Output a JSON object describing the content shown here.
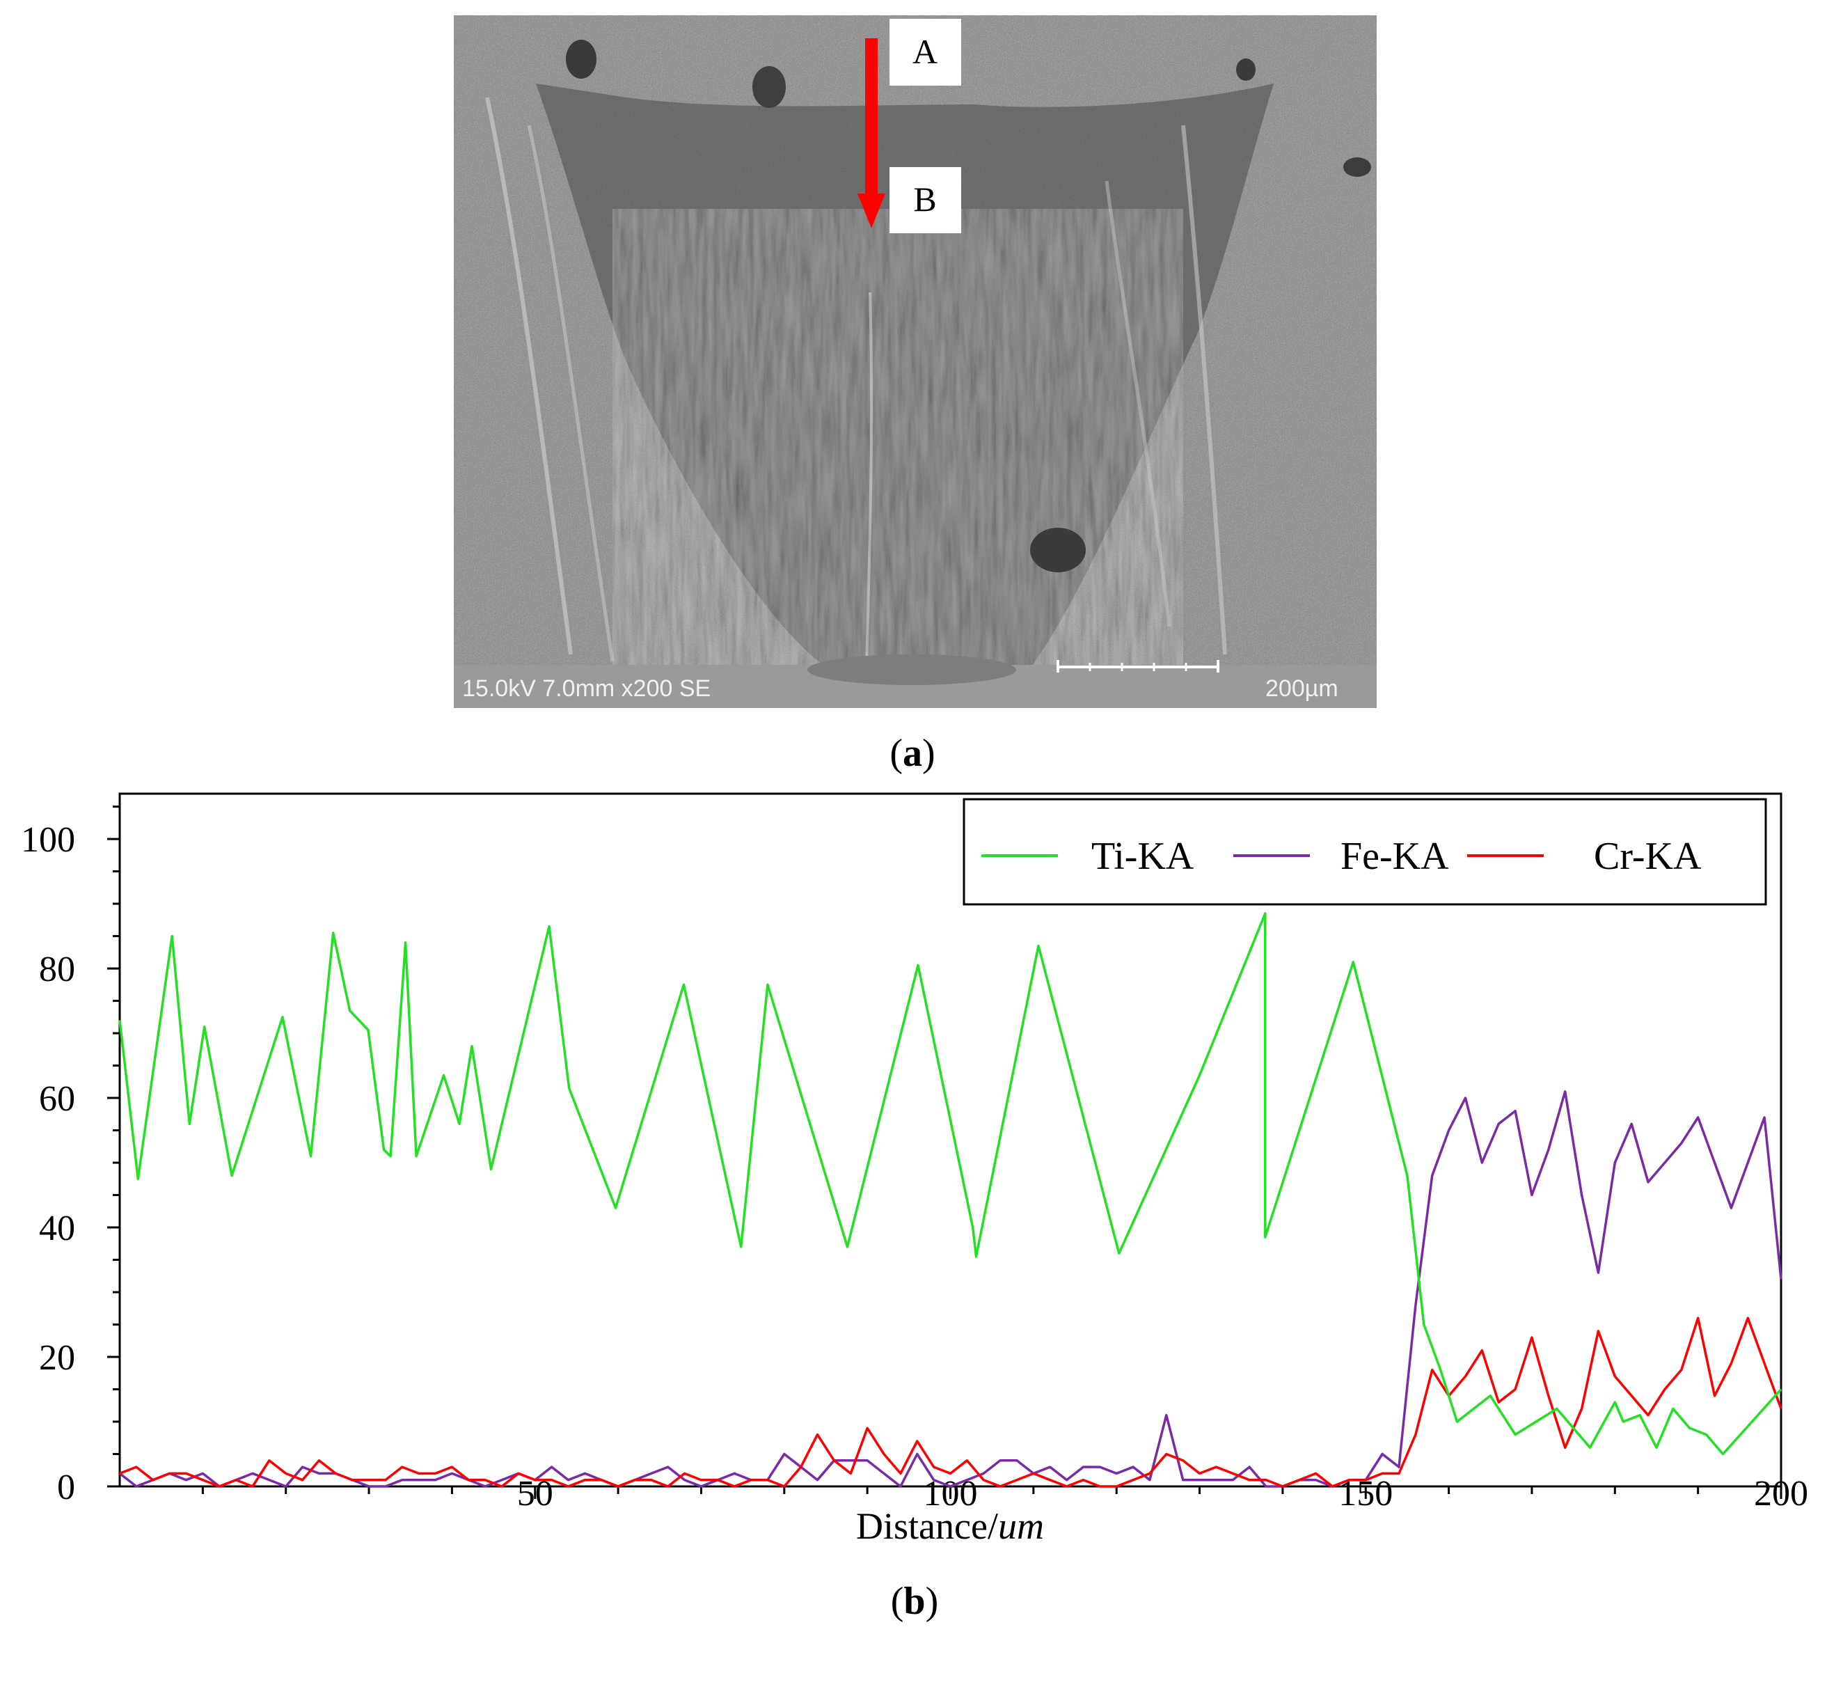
{
  "panel_a": {
    "caption_open": "(",
    "caption_letter": "a",
    "caption_close": ")",
    "marker_a": "A",
    "marker_b": "B",
    "sem_info": "15.0kV 7.0mm x200 SE",
    "scale_bar": "200µm"
  },
  "panel_b": {
    "caption_open": "(",
    "caption_letter": "b",
    "caption_close": ")",
    "xlabel_main": "Distance/",
    "xlabel_unit": "um"
  },
  "colors": {
    "ti": "#22e022",
    "fe": "#7a2aa6",
    "cr": "#ff0000",
    "arrow": "#ff0000"
  },
  "chart_data": {
    "type": "line",
    "title": "",
    "xlabel": "Distance/um",
    "ylabel": "",
    "xlim": [
      0,
      200
    ],
    "ylim": [
      0,
      107
    ],
    "x_ticks": [
      50,
      100,
      150,
      200
    ],
    "y_ticks": [
      0,
      20,
      40,
      60,
      80,
      100
    ],
    "legend": "top-right",
    "series": [
      {
        "name": "Ti-KA",
        "color": "#22e022",
        "x": [
          0,
          2.2,
          6.3,
          8.4,
          10.2,
          13.5,
          19.6,
          23,
          25.7,
          27.7,
          29.9,
          31.8,
          32.6,
          34.4,
          35.7,
          39,
          40.9,
          42.4,
          44.7,
          51.7,
          54.1,
          59.7,
          67.9,
          74.8,
          78,
          87.6,
          96.1,
          102.7,
          103.1,
          110.6,
          120.3,
          130,
          137.9,
          137.9,
          148.5,
          155,
          157,
          159,
          161,
          165,
          168,
          173,
          177,
          180,
          181,
          183,
          185,
          187,
          189,
          191,
          193,
          200
        ],
        "y": [
          72,
          47.5,
          85,
          56,
          71,
          48,
          72.5,
          51,
          85.5,
          73.5,
          70.5,
          52,
          51,
          84,
          51,
          63.5,
          56,
          68,
          49,
          86.5,
          61.5,
          43,
          77.5,
          37,
          77.5,
          37,
          80.5,
          40,
          35.5,
          83.5,
          36,
          63.5,
          88.5,
          38.5,
          81,
          48,
          25,
          18,
          10,
          14,
          8,
          12,
          6,
          13,
          10,
          11,
          6,
          12,
          9,
          8,
          5,
          15
        ]
      },
      {
        "name": "Fe-KA",
        "color": "#7a2aa6",
        "x": [
          0,
          2,
          4,
          6,
          8,
          10,
          12,
          14,
          16,
          18,
          20,
          22,
          24,
          26,
          28,
          30,
          32,
          34,
          36,
          38,
          40,
          42,
          44,
          46,
          48,
          50,
          52,
          54,
          56,
          58,
          60,
          62,
          64,
          66,
          68,
          70,
          72,
          74,
          76,
          78,
          80,
          82,
          84,
          86,
          88,
          90,
          92,
          94,
          96,
          98,
          100,
          102,
          104,
          106,
          108,
          110,
          112,
          114,
          116,
          118,
          120,
          122,
          124,
          126,
          128,
          130,
          132,
          134,
          136,
          138,
          140,
          142,
          144,
          146,
          148,
          150,
          152,
          154,
          156,
          158,
          160,
          162,
          164,
          166,
          168,
          170,
          172,
          174,
          176,
          178,
          180,
          182,
          184,
          186,
          188,
          190,
          192,
          194,
          196,
          198,
          200
        ],
        "y": [
          2,
          0,
          1,
          2,
          1,
          2,
          0,
          1,
          2,
          1,
          0,
          3,
          2,
          2,
          1,
          0,
          0,
          1,
          1,
          1,
          2,
          1,
          0,
          1,
          2,
          1,
          3,
          1,
          2,
          1,
          0,
          1,
          2,
          3,
          1,
          0,
          1,
          2,
          1,
          1,
          5,
          3,
          1,
          4,
          4,
          4,
          2,
          0,
          5,
          1,
          0,
          1,
          2,
          4,
          4,
          2,
          3,
          1,
          3,
          3,
          2,
          3,
          1,
          11,
          1,
          1,
          1,
          1,
          3,
          0,
          0,
          1,
          1,
          0,
          1,
          1,
          5,
          3,
          28,
          48,
          55,
          60,
          50,
          56,
          58,
          45,
          52,
          61,
          45,
          33,
          50,
          56,
          47,
          50,
          53,
          57,
          50,
          43,
          50,
          57,
          32
        ]
      },
      {
        "name": "Cr-KA",
        "color": "#ff0000",
        "x": [
          0,
          2,
          4,
          6,
          8,
          10,
          12,
          14,
          16,
          18,
          20,
          22,
          24,
          26,
          28,
          30,
          32,
          34,
          36,
          38,
          40,
          42,
          44,
          46,
          48,
          50,
          52,
          54,
          56,
          58,
          60,
          62,
          64,
          66,
          68,
          70,
          72,
          74,
          76,
          78,
          80,
          82,
          84,
          86,
          88,
          90,
          92,
          94,
          96,
          98,
          100,
          102,
          104,
          106,
          108,
          110,
          112,
          114,
          116,
          118,
          120,
          122,
          124,
          126,
          128,
          130,
          132,
          134,
          136,
          138,
          140,
          142,
          144,
          146,
          148,
          150,
          152,
          154,
          156,
          158,
          160,
          162,
          164,
          166,
          168,
          170,
          172,
          174,
          176,
          178,
          180,
          182,
          184,
          186,
          188,
          190,
          192,
          194,
          196,
          198,
          200
        ],
        "y": [
          2,
          3,
          1,
          2,
          2,
          1,
          0,
          1,
          0,
          4,
          2,
          1,
          4,
          2,
          1,
          1,
          1,
          3,
          2,
          2,
          3,
          1,
          1,
          0,
          2,
          1,
          1,
          0,
          1,
          1,
          0,
          1,
          1,
          0,
          2,
          1,
          1,
          0,
          1,
          1,
          0,
          3,
          8,
          4,
          2,
          9,
          5,
          2,
          7,
          3,
          2,
          4,
          1,
          0,
          1,
          2,
          1,
          0,
          1,
          0,
          0,
          1,
          2,
          5,
          4,
          2,
          3,
          2,
          1,
          1,
          0,
          1,
          2,
          0,
          1,
          1,
          2,
          2,
          8,
          18,
          14,
          17,
          21,
          13,
          15,
          23,
          14,
          6,
          12,
          24,
          17,
          14,
          11,
          15,
          18,
          26,
          14,
          19,
          26,
          19,
          12
        ]
      }
    ]
  }
}
